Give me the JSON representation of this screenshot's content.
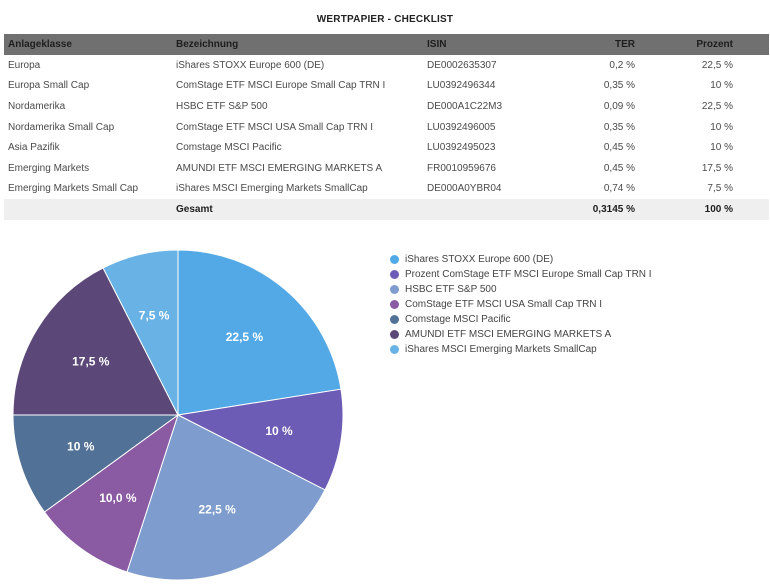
{
  "title": "WERTPAPIER - CHECKLIST",
  "table": {
    "headers": [
      "Anlageklasse",
      "Bezeichnung",
      "ISIN",
      "TER",
      "Prozent"
    ],
    "rows": [
      [
        "Europa",
        "iShares STOXX Europe 600 (DE)",
        "DE0002635307",
        "0,2 %",
        "22,5 %"
      ],
      [
        "Europa Small Cap",
        "ComStage ETF MSCI Europe Small Cap TRN I",
        "LU0392496344",
        "0,35 %",
        "10 %"
      ],
      [
        "Nordamerika",
        "HSBC ETF S&P 500",
        "DE000A1C22M3",
        "0,09 %",
        "22,5 %"
      ],
      [
        "Nordamerika Small Cap",
        "ComStage ETF MSCI USA Small Cap TRN I",
        "LU0392496005",
        "0,35 %",
        "10 %"
      ],
      [
        "Asia Pazifik",
        "Comstage MSCI Pacific",
        "LU0392495023",
        "0,45 %",
        "10 %"
      ],
      [
        "Emerging Markets",
        "AMUNDI ETF MSCI EMERGING MARKETS A",
        "FR0010959676",
        "0,45 %",
        "17,5 %"
      ],
      [
        "Emerging Markets Small Cap",
        "iShares MSCI Emerging Markets SmallCap",
        "DE000A0YBR04",
        "0,74 %",
        "7,5 %"
      ]
    ],
    "total": [
      "",
      "Gesamt",
      "",
      "0,3145 %",
      "100 %"
    ]
  },
  "chart_data": {
    "type": "pie",
    "series": [
      {
        "name": "iShares STOXX Europe 600 (DE)",
        "value": 22.5,
        "label": "22,5 %",
        "color": "#53a9e6"
      },
      {
        "name": "Prozent ComStage ETF MSCI Europe Small Cap TRN I",
        "value": 10,
        "label": "10 %",
        "color": "#6c5cb5"
      },
      {
        "name": "HSBC ETF S&P 500",
        "value": 22.5,
        "label": "22,5 %",
        "color": "#7e9ccd"
      },
      {
        "name": "ComStage ETF MSCI USA Small Cap TRN I",
        "value": 10,
        "label": "10,0 %",
        "color": "#8a5aa3"
      },
      {
        "name": "Comstage MSCI Pacific",
        "value": 10,
        "label": "10 %",
        "color": "#527197"
      },
      {
        "name": "AMUNDI ETF MSCI EMERGING MARKETS A",
        "value": 17.5,
        "label": "17,5 %",
        "color": "#5b4878"
      },
      {
        "name": "iShares MSCI Emerging Markets SmallCap",
        "value": 7.5,
        "label": "7,5 %",
        "color": "#68b2e6"
      }
    ],
    "legend_position": "right"
  }
}
